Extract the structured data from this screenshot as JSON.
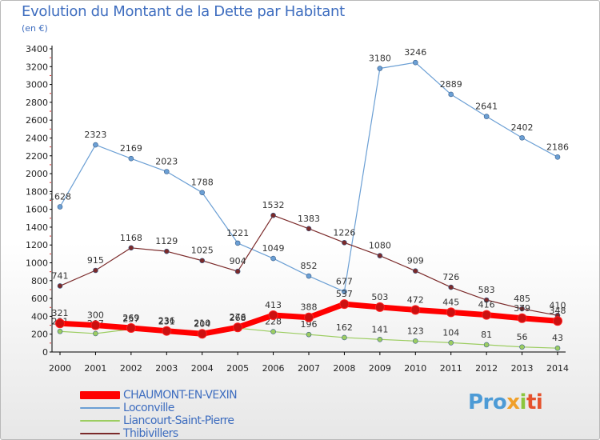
{
  "title": "Evolution du Montant de la Dette par Habitant",
  "subtitle": "(en €)",
  "logo": {
    "p1": "Pro",
    "p2": "x",
    "p3": "i",
    "p4": "ti"
  },
  "chart_data": {
    "type": "line",
    "x": [
      "2000",
      "2001",
      "2002",
      "2003",
      "2004",
      "2005",
      "2006",
      "2007",
      "2008",
      "2009",
      "2010",
      "2011",
      "2012",
      "2013",
      "2014"
    ],
    "ylim": [
      0,
      3400
    ],
    "yticks": [
      0,
      200,
      400,
      600,
      800,
      1000,
      1200,
      1400,
      1600,
      1800,
      2000,
      2200,
      2400,
      2600,
      2800,
      3000,
      3200,
      3400
    ],
    "grid": false,
    "legend_position": "bottom-left",
    "series": [
      {
        "name": "Loconville",
        "color": "#6b9fd4",
        "width": 1.2,
        "values": [
          1628,
          2323,
          2169,
          2023,
          1788,
          1221,
          1049,
          852,
          677,
          3180,
          3246,
          2889,
          2641,
          2402,
          2186
        ],
        "labels": [
          "1628",
          "2323",
          "2169",
          "2023",
          "1788",
          "1221",
          "1049",
          "852",
          "677",
          "3180",
          "3246",
          "2889",
          "2641",
          "2402",
          "2186"
        ]
      },
      {
        "name": "Liancourt-Saint-Pierre",
        "color": "#9ccd61",
        "width": 1.2,
        "values": [
          231,
          207,
          257,
          231,
          210,
          268,
          228,
          196,
          162,
          141,
          123,
          104,
          81,
          56,
          43
        ],
        "labels": [
          "231",
          "207",
          "257",
          "231",
          "210",
          "268",
          "228",
          "196",
          "162",
          "141",
          "123",
          "104",
          "81",
          "56",
          "43"
        ]
      },
      {
        "name": "Thibivillers",
        "color": "#7b2a2a",
        "width": 1.2,
        "values": [
          741,
          915,
          1168,
          1129,
          1025,
          904,
          1532,
          1383,
          1226,
          1080,
          909,
          726,
          583,
          485,
          410
        ],
        "labels": [
          "741",
          "915",
          "1168",
          "1129",
          "1025",
          "904",
          "1532",
          "1383",
          "1226",
          "1080",
          "909",
          "726",
          "583",
          "485",
          "410"
        ]
      },
      {
        "name": "CHAUMONT-EN-VEXIN",
        "color": "#ff0000",
        "width": 7,
        "values": [
          321,
          300,
          269,
          236,
          204,
          276,
          413,
          388,
          537,
          503,
          472,
          445,
          416,
          379,
          348
        ],
        "labels": [
          "321",
          "300",
          "269",
          "236",
          "204",
          "276",
          "413",
          "388",
          "537",
          "503",
          "472",
          "445",
          "416",
          "379",
          "348"
        ]
      }
    ],
    "legend_order": [
      "CHAUMONT-EN-VEXIN",
      "Loconville",
      "Liancourt-Saint-Pierre",
      "Thibivillers"
    ]
  }
}
